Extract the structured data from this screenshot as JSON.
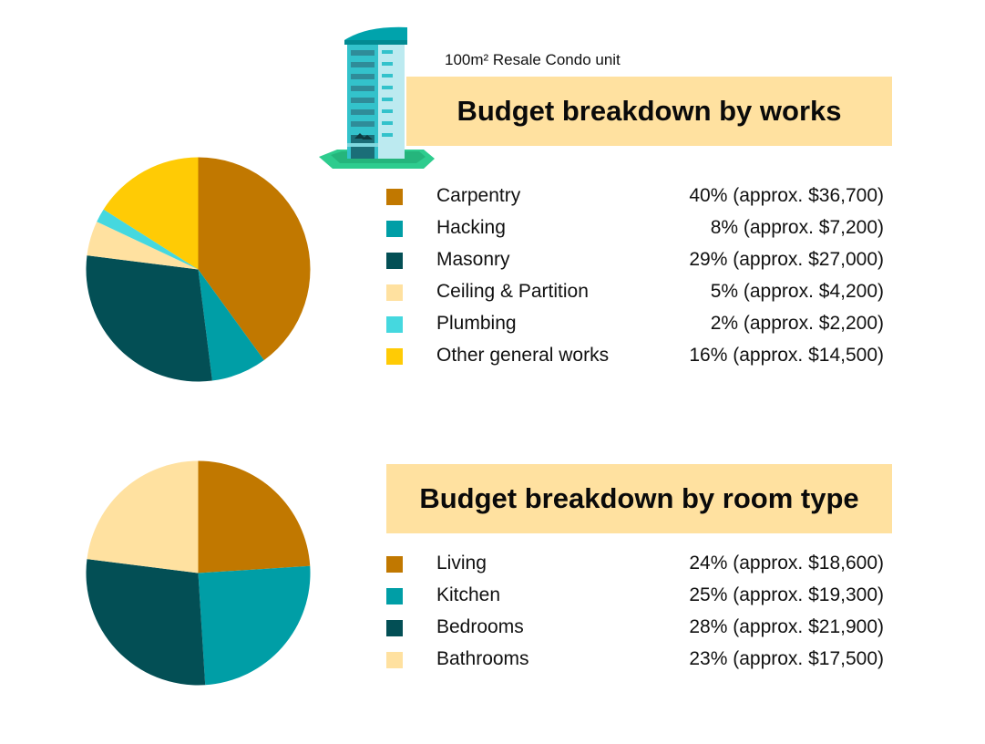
{
  "header": {
    "subtitle": "100m² Resale Condo unit"
  },
  "icons": {
    "building": "condo-building-icon"
  },
  "colors": {
    "carpentry": "#C17800",
    "hacking": "#009EA6",
    "masonry": "#034F55",
    "ceiling": "#FFE1A0",
    "plumbing": "#45D8DF",
    "other": "#FFCB05",
    "banner": "#FFE1A0"
  },
  "chart_data": [
    {
      "type": "pie",
      "title": "Budget breakdown by works",
      "categories": [
        "Carpentry",
        "Hacking",
        "Masonry",
        "Ceiling & Partition",
        "Plumbing",
        "Other general works"
      ],
      "values": [
        40,
        8,
        29,
        5,
        2,
        16
      ],
      "labels": [
        "40% (approx. $36,700)",
        "8% (approx. $7,200)",
        "29% (approx. $27,000)",
        "5% (approx. $4,200)",
        "2% (approx. $2,200)",
        "16% (approx. $14,500)"
      ],
      "colors": [
        "#C17800",
        "#009EA6",
        "#034F55",
        "#FFE1A0",
        "#45D8DF",
        "#FFCB05"
      ],
      "legend_position": "right"
    },
    {
      "type": "pie",
      "title": "Budget breakdown by room type",
      "categories": [
        "Living",
        "Kitchen",
        "Bedrooms",
        "Bathrooms"
      ],
      "values": [
        24,
        25,
        28,
        23
      ],
      "labels": [
        "24% (approx. $18,600)",
        "25% (approx. $19,300)",
        "28% (approx. $21,900)",
        "23% (approx. $17,500)"
      ],
      "colors": [
        "#C17800",
        "#009EA6",
        "#034F55",
        "#FFE1A0"
      ],
      "legend_position": "right"
    }
  ]
}
